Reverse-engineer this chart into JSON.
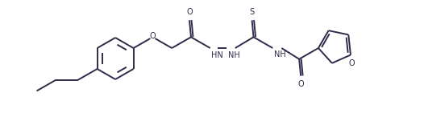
{
  "bg_color": "#ffffff",
  "line_color": "#2c2c4a",
  "line_width": 1.4,
  "fig_width": 5.26,
  "fig_height": 1.51,
  "dpi": 100,
  "xlim": [
    0,
    10.5
  ],
  "ylim": [
    0,
    2.8
  ]
}
